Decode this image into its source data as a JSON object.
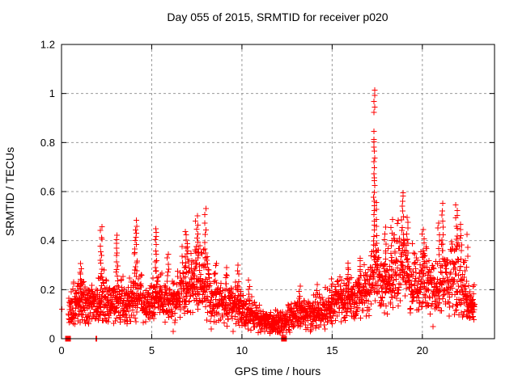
{
  "chart_data": {
    "type": "scatter",
    "title": "Day 055 of 2015, SRMTID for receiver p020",
    "xlabel": "GPS time / hours",
    "ylabel": "SRMTID / TECUs",
    "xlim": [
      0,
      24
    ],
    "ylim": [
      0,
      1.2
    ],
    "xticks": [
      0,
      5,
      10,
      15,
      20
    ],
    "yticks": [
      0,
      0.2,
      0.4,
      0.6,
      0.8,
      1,
      1.2
    ],
    "xtick_labels": [
      "0",
      "5",
      "10",
      "15",
      "20"
    ],
    "ytick_labels": [
      "0",
      "0.2",
      "0.4",
      "0.6",
      "0.8",
      "1",
      "1.2"
    ],
    "grid": {
      "visible": true,
      "legend": "none",
      "color": "#999999",
      "dash": [
        3,
        3
      ],
      "x_at": [
        5,
        10,
        15,
        20
      ],
      "y_at": [
        0.2,
        0.4,
        0.6,
        0.8,
        1.0
      ]
    },
    "marker": {
      "shape": "plus",
      "size": 7,
      "color": "#ff0000"
    },
    "flagged_marker": {
      "shape": "filled-square",
      "size": 7,
      "color": "#ff0000"
    },
    "series_name": "SRMTID",
    "data_extent_hours": [
      0.0,
      22.9
    ],
    "max_value": 1.01,
    "max_value_at_hour": 17.33,
    "band_segments": [
      [
        0.4,
        1.0,
        70,
        0.12,
        0.15,
        0.06
      ],
      [
        1.0,
        1.35,
        42,
        0.16,
        0.15,
        0.075
      ],
      [
        1.35,
        2.1,
        85,
        0.14,
        0.15,
        0.06
      ],
      [
        2.1,
        2.5,
        46,
        0.16,
        0.16,
        0.075
      ],
      [
        2.5,
        3.0,
        55,
        0.14,
        0.14,
        0.06
      ],
      [
        3.0,
        3.45,
        48,
        0.16,
        0.16,
        0.075
      ],
      [
        3.45,
        3.95,
        55,
        0.14,
        0.15,
        0.065
      ],
      [
        3.95,
        4.45,
        55,
        0.17,
        0.17,
        0.085
      ],
      [
        4.45,
        5.05,
        65,
        0.14,
        0.14,
        0.06
      ],
      [
        5.05,
        5.55,
        55,
        0.16,
        0.16,
        0.075
      ],
      [
        5.55,
        6.6,
        110,
        0.15,
        0.16,
        0.07
      ],
      [
        6.6,
        7.4,
        90,
        0.21,
        0.24,
        0.1
      ],
      [
        7.4,
        8.2,
        90,
        0.24,
        0.2,
        0.1
      ],
      [
        8.2,
        9.4,
        120,
        0.15,
        0.14,
        0.07
      ],
      [
        9.4,
        10.1,
        72,
        0.14,
        0.12,
        0.06
      ],
      [
        10.1,
        11.0,
        92,
        0.11,
        0.08,
        0.05
      ],
      [
        11.0,
        12.5,
        155,
        0.07,
        0.06,
        0.035
      ],
      [
        12.5,
        13.3,
        82,
        0.08,
        0.1,
        0.045
      ],
      [
        13.3,
        14.3,
        100,
        0.1,
        0.1,
        0.05
      ],
      [
        14.3,
        15.2,
        92,
        0.11,
        0.13,
        0.055
      ],
      [
        15.2,
        16.3,
        112,
        0.15,
        0.17,
        0.07
      ],
      [
        16.3,
        17.1,
        82,
        0.17,
        0.19,
        0.08
      ],
      [
        17.1,
        17.6,
        55,
        0.24,
        0.26,
        0.1
      ],
      [
        17.6,
        18.4,
        85,
        0.22,
        0.22,
        0.1
      ],
      [
        18.4,
        19.3,
        95,
        0.28,
        0.3,
        0.12
      ],
      [
        19.3,
        19.9,
        62,
        0.22,
        0.22,
        0.1
      ],
      [
        19.9,
        20.4,
        55,
        0.24,
        0.24,
        0.1
      ],
      [
        20.4,
        21.0,
        62,
        0.2,
        0.2,
        0.09
      ],
      [
        21.0,
        21.55,
        58,
        0.24,
        0.24,
        0.11
      ],
      [
        21.55,
        22.4,
        92,
        0.24,
        0.23,
        0.12
      ],
      [
        22.4,
        22.9,
        68,
        0.15,
        0.14,
        0.05
      ]
    ],
    "spike_columns": [
      [
        1.08,
        0.2,
        0.3,
        8,
        0.05
      ],
      [
        2.2,
        0.25,
        0.455,
        12,
        0.05
      ],
      [
        3.07,
        0.25,
        0.42,
        11,
        0.05
      ],
      [
        4.12,
        0.26,
        0.48,
        15,
        0.08
      ],
      [
        5.23,
        0.27,
        0.455,
        11,
        0.06
      ],
      [
        5.9,
        0.23,
        0.35,
        7,
        0.05
      ],
      [
        6.92,
        0.3,
        0.44,
        10,
        0.07
      ],
      [
        7.5,
        0.3,
        0.5,
        12,
        0.08
      ],
      [
        7.97,
        0.32,
        0.53,
        9,
        0.05
      ],
      [
        8.55,
        0.22,
        0.31,
        6,
        0.05
      ],
      [
        9.15,
        0.2,
        0.29,
        5,
        0.05
      ],
      [
        9.8,
        0.18,
        0.3,
        7,
        0.05
      ],
      [
        10.4,
        0.14,
        0.24,
        6,
        0.05
      ],
      [
        13.2,
        0.13,
        0.21,
        6,
        0.05
      ],
      [
        14.15,
        0.13,
        0.22,
        6,
        0.05
      ],
      [
        15.0,
        0.14,
        0.24,
        7,
        0.05
      ],
      [
        15.9,
        0.19,
        0.31,
        8,
        0.05
      ],
      [
        16.55,
        0.21,
        0.33,
        8,
        0.05
      ],
      [
        17.32,
        0.38,
        0.84,
        24,
        0.035
      ],
      [
        17.34,
        0.93,
        1.01,
        5,
        0.03
      ],
      [
        17.48,
        0.32,
        0.56,
        8,
        0.05
      ],
      [
        17.95,
        0.28,
        0.46,
        8,
        0.05
      ],
      [
        18.3,
        0.32,
        0.48,
        7,
        0.05
      ],
      [
        18.9,
        0.38,
        0.595,
        12,
        0.06
      ],
      [
        19.15,
        0.33,
        0.5,
        8,
        0.05
      ],
      [
        20.05,
        0.3,
        0.45,
        8,
        0.06
      ],
      [
        20.9,
        0.32,
        0.47,
        7,
        0.05
      ],
      [
        21.1,
        0.36,
        0.55,
        9,
        0.06
      ],
      [
        21.9,
        0.36,
        0.55,
        10,
        0.07
      ],
      [
        22.15,
        0.3,
        0.47,
        7,
        0.05
      ],
      [
        22.5,
        0.24,
        0.42,
        5,
        0.05
      ]
    ],
    "extra_points": [
      [
        0.03,
        0.12
      ],
      [
        0.38,
        0.1
      ],
      [
        0.41,
        0.08
      ],
      [
        6.2,
        0.03
      ],
      [
        8.3,
        0.04
      ],
      [
        9.5,
        0.03
      ],
      [
        10.9,
        0.025
      ],
      [
        13.8,
        0.03
      ],
      [
        14.6,
        0.04
      ],
      [
        20.6,
        0.05
      ]
    ],
    "zero_plus_points": [
      [
        1.9,
        0.0
      ],
      [
        1.95,
        0.0
      ]
    ],
    "square_points": [
      [
        0.36,
        0.0
      ],
      [
        12.33,
        0.0
      ]
    ],
    "seed": 20150055
  }
}
